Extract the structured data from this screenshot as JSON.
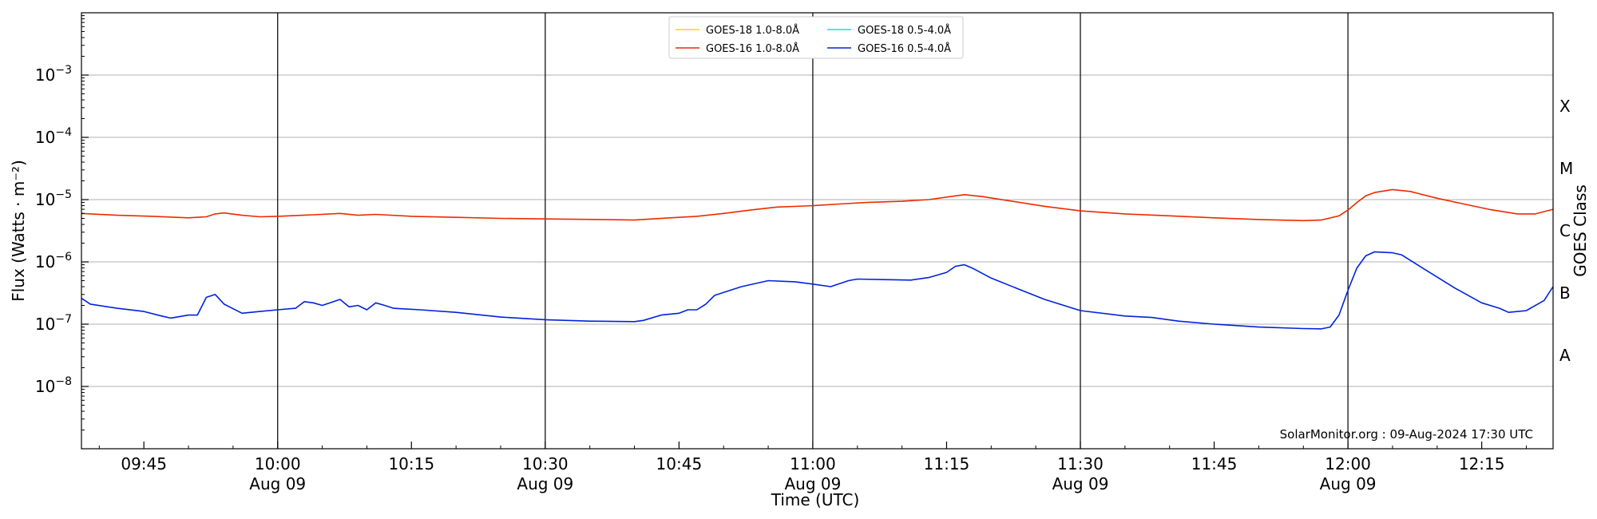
{
  "chart_data": {
    "type": "line",
    "xlabel": "Time (UTC)",
    "ylabel": "Flux (Watts · m⁻²)",
    "y2label": "GOES Class",
    "yscale": "log",
    "ylim": [
      1e-09,
      0.01
    ],
    "xlim": [
      "2024-08-09 09:38",
      "2024-08-09 12:23"
    ],
    "grid": "horizontal",
    "legend_position": "top-center",
    "y_ticks": [
      {
        "value": 1e-08,
        "base": "10",
        "exp": "−8"
      },
      {
        "value": 1e-07,
        "base": "10",
        "exp": "−7"
      },
      {
        "value": 1e-06,
        "base": "10",
        "exp": "−6"
      },
      {
        "value": 1e-05,
        "base": "10",
        "exp": "−5"
      },
      {
        "value": 0.0001,
        "base": "10",
        "exp": "−4"
      },
      {
        "value": 0.001,
        "base": "10",
        "exp": "−3"
      }
    ],
    "class_ticks": [
      {
        "label": "A",
        "at": 3.16e-08
      },
      {
        "label": "B",
        "at": 3.16e-07
      },
      {
        "label": "C",
        "at": 3.16e-06
      },
      {
        "label": "M",
        "at": 3.16e-05
      },
      {
        "label": "X",
        "at": 0.000316
      }
    ],
    "x_ticks": [
      {
        "time": "2024-08-09 09:45",
        "label": "09:45",
        "sublabel": ""
      },
      {
        "time": "2024-08-09 10:00",
        "label": "10:00",
        "sublabel": "Aug 09"
      },
      {
        "time": "2024-08-09 10:15",
        "label": "10:15",
        "sublabel": ""
      },
      {
        "time": "2024-08-09 10:30",
        "label": "10:30",
        "sublabel": "Aug 09"
      },
      {
        "time": "2024-08-09 10:45",
        "label": "10:45",
        "sublabel": ""
      },
      {
        "time": "2024-08-09 11:00",
        "label": "11:00",
        "sublabel": "Aug 09"
      },
      {
        "time": "2024-08-09 11:15",
        "label": "11:15",
        "sublabel": ""
      },
      {
        "time": "2024-08-09 11:30",
        "label": "11:30",
        "sublabel": "Aug 09"
      },
      {
        "time": "2024-08-09 11:45",
        "label": "11:45",
        "sublabel": ""
      },
      {
        "time": "2024-08-09 12:00",
        "label": "12:00",
        "sublabel": "Aug 09"
      },
      {
        "time": "2024-08-09 12:15",
        "label": "12:15",
        "sublabel": ""
      }
    ],
    "vlines": [
      "2024-08-09 10:00",
      "2024-08-09 10:30",
      "2024-08-09 11:00",
      "2024-08-09 11:30",
      "2024-08-09 12:00"
    ],
    "series": [
      {
        "name": "GOES-18 1.0-8.0Å",
        "color": "#ffd700",
        "points": []
      },
      {
        "name": "GOES-18 0.5-4.0Å",
        "color": "#00e5ee",
        "points": []
      },
      {
        "name": "GOES-16 1.0-8.0Å",
        "color": "#ee2a00",
        "points": [
          [
            "2024-08-09 09:38",
            6e-06
          ],
          [
            "2024-08-09 09:42",
            5.6e-06
          ],
          [
            "2024-08-09 09:46",
            5.4e-06
          ],
          [
            "2024-08-09 09:50",
            5.1e-06
          ],
          [
            "2024-08-09 09:52",
            5.3e-06
          ],
          [
            "2024-08-09 09:53",
            5.9e-06
          ],
          [
            "2024-08-09 09:54",
            6.1e-06
          ],
          [
            "2024-08-09 09:56",
            5.6e-06
          ],
          [
            "2024-08-09 09:58",
            5.3e-06
          ],
          [
            "2024-08-09 10:00",
            5.4e-06
          ],
          [
            "2024-08-09 10:04",
            5.7e-06
          ],
          [
            "2024-08-09 10:07",
            6e-06
          ],
          [
            "2024-08-09 10:09",
            5.6e-06
          ],
          [
            "2024-08-09 10:11",
            5.8e-06
          ],
          [
            "2024-08-09 10:15",
            5.4e-06
          ],
          [
            "2024-08-09 10:20",
            5.2e-06
          ],
          [
            "2024-08-09 10:25",
            5e-06
          ],
          [
            "2024-08-09 10:30",
            4.9e-06
          ],
          [
            "2024-08-09 10:36",
            4.8e-06
          ],
          [
            "2024-08-09 10:40",
            4.7e-06
          ],
          [
            "2024-08-09 10:44",
            5.1e-06
          ],
          [
            "2024-08-09 10:47",
            5.4e-06
          ],
          [
            "2024-08-09 10:50",
            6e-06
          ],
          [
            "2024-08-09 10:53",
            6.8e-06
          ],
          [
            "2024-08-09 10:56",
            7.6e-06
          ],
          [
            "2024-08-09 11:00",
            8e-06
          ],
          [
            "2024-08-09 11:03",
            8.5e-06
          ],
          [
            "2024-08-09 11:06",
            9e-06
          ],
          [
            "2024-08-09 11:10",
            9.4e-06
          ],
          [
            "2024-08-09 11:13",
            1e-05
          ],
          [
            "2024-08-09 11:16",
            1.15e-05
          ],
          [
            "2024-08-09 11:17",
            1.2e-05
          ],
          [
            "2024-08-09 11:19",
            1.12e-05
          ],
          [
            "2024-08-09 11:22",
            9.6e-06
          ],
          [
            "2024-08-09 11:26",
            7.8e-06
          ],
          [
            "2024-08-09 11:30",
            6.6e-06
          ],
          [
            "2024-08-09 11:35",
            5.9e-06
          ],
          [
            "2024-08-09 11:40",
            5.5e-06
          ],
          [
            "2024-08-09 11:45",
            5.1e-06
          ],
          [
            "2024-08-09 11:50",
            4.8e-06
          ],
          [
            "2024-08-09 11:55",
            4.6e-06
          ],
          [
            "2024-08-09 11:57",
            4.7e-06
          ],
          [
            "2024-08-09 11:59",
            5.5e-06
          ],
          [
            "2024-08-09 12:00",
            6.8e-06
          ],
          [
            "2024-08-09 12:01",
            9e-06
          ],
          [
            "2024-08-09 12:02",
            1.15e-05
          ],
          [
            "2024-08-09 12:03",
            1.3e-05
          ],
          [
            "2024-08-09 12:05",
            1.45e-05
          ],
          [
            "2024-08-09 12:07",
            1.35e-05
          ],
          [
            "2024-08-09 12:10",
            1.05e-05
          ],
          [
            "2024-08-09 12:13",
            8.5e-06
          ],
          [
            "2024-08-09 12:16",
            6.9e-06
          ],
          [
            "2024-08-09 12:19",
            5.9e-06
          ],
          [
            "2024-08-09 12:21",
            5.9e-06
          ],
          [
            "2024-08-09 12:23",
            7e-06
          ]
        ]
      },
      {
        "name": "GOES-16 0.5-4.0Å",
        "color": "#0022dd",
        "points": [
          [
            "2024-08-09 09:38",
            2.6e-07
          ],
          [
            "2024-08-09 09:39",
            2.1e-07
          ],
          [
            "2024-08-09 09:42",
            1.8e-07
          ],
          [
            "2024-08-09 09:45",
            1.6e-07
          ],
          [
            "2024-08-09 09:47",
            1.35e-07
          ],
          [
            "2024-08-09 09:48",
            1.25e-07
          ],
          [
            "2024-08-09 09:50",
            1.4e-07
          ],
          [
            "2024-08-09 09:51",
            1.4e-07
          ],
          [
            "2024-08-09 09:52",
            2.7e-07
          ],
          [
            "2024-08-09 09:53",
            3e-07
          ],
          [
            "2024-08-09 09:54",
            2.1e-07
          ],
          [
            "2024-08-09 09:56",
            1.5e-07
          ],
          [
            "2024-08-09 09:58",
            1.6e-07
          ],
          [
            "2024-08-09 10:00",
            1.7e-07
          ],
          [
            "2024-08-09 10:02",
            1.8e-07
          ],
          [
            "2024-08-09 10:03",
            2.3e-07
          ],
          [
            "2024-08-09 10:04",
            2.2e-07
          ],
          [
            "2024-08-09 10:05",
            2e-07
          ],
          [
            "2024-08-09 10:07",
            2.5e-07
          ],
          [
            "2024-08-09 10:08",
            1.9e-07
          ],
          [
            "2024-08-09 10:09",
            2e-07
          ],
          [
            "2024-08-09 10:10",
            1.7e-07
          ],
          [
            "2024-08-09 10:11",
            2.2e-07
          ],
          [
            "2024-08-09 10:12",
            2e-07
          ],
          [
            "2024-08-09 10:13",
            1.8e-07
          ],
          [
            "2024-08-09 10:16",
            1.7e-07
          ],
          [
            "2024-08-09 10:20",
            1.55e-07
          ],
          [
            "2024-08-09 10:25",
            1.3e-07
          ],
          [
            "2024-08-09 10:30",
            1.18e-07
          ],
          [
            "2024-08-09 10:35",
            1.12e-07
          ],
          [
            "2024-08-09 10:40",
            1.1e-07
          ],
          [
            "2024-08-09 10:41",
            1.15e-07
          ],
          [
            "2024-08-09 10:43",
            1.4e-07
          ],
          [
            "2024-08-09 10:45",
            1.5e-07
          ],
          [
            "2024-08-09 10:46",
            1.7e-07
          ],
          [
            "2024-08-09 10:47",
            1.7e-07
          ],
          [
            "2024-08-09 10:48",
            2.1e-07
          ],
          [
            "2024-08-09 10:49",
            2.9e-07
          ],
          [
            "2024-08-09 10:52",
            4e-07
          ],
          [
            "2024-08-09 10:55",
            5e-07
          ],
          [
            "2024-08-09 10:58",
            4.8e-07
          ],
          [
            "2024-08-09 11:00",
            4.4e-07
          ],
          [
            "2024-08-09 11:02",
            4e-07
          ],
          [
            "2024-08-09 11:04",
            5e-07
          ],
          [
            "2024-08-09 11:05",
            5.3e-07
          ],
          [
            "2024-08-09 11:08",
            5.2e-07
          ],
          [
            "2024-08-09 11:11",
            5.1e-07
          ],
          [
            "2024-08-09 11:13",
            5.6e-07
          ],
          [
            "2024-08-09 11:15",
            6.8e-07
          ],
          [
            "2024-08-09 11:16",
            8.5e-07
          ],
          [
            "2024-08-09 11:17",
            9e-07
          ],
          [
            "2024-08-09 11:18",
            7.8e-07
          ],
          [
            "2024-08-09 11:20",
            5.5e-07
          ],
          [
            "2024-08-09 11:23",
            3.7e-07
          ],
          [
            "2024-08-09 11:26",
            2.5e-07
          ],
          [
            "2024-08-09 11:30",
            1.65e-07
          ],
          [
            "2024-08-09 11:35",
            1.35e-07
          ],
          [
            "2024-08-09 11:38",
            1.28e-07
          ],
          [
            "2024-08-09 11:41",
            1.12e-07
          ],
          [
            "2024-08-09 11:45",
            1e-07
          ],
          [
            "2024-08-09 11:50",
            9e-08
          ],
          [
            "2024-08-09 11:55",
            8.5e-08
          ],
          [
            "2024-08-09 11:57",
            8.4e-08
          ],
          [
            "2024-08-09 11:58",
            9e-08
          ],
          [
            "2024-08-09 11:59",
            1.4e-07
          ],
          [
            "2024-08-09 12:00",
            3.5e-07
          ],
          [
            "2024-08-09 12:01",
            8e-07
          ],
          [
            "2024-08-09 12:02",
            1.25e-06
          ],
          [
            "2024-08-09 12:03",
            1.45e-06
          ],
          [
            "2024-08-09 12:05",
            1.4e-06
          ],
          [
            "2024-08-09 12:06",
            1.3e-06
          ],
          [
            "2024-08-09 12:09",
            7e-07
          ],
          [
            "2024-08-09 12:12",
            3.8e-07
          ],
          [
            "2024-08-09 12:15",
            2.2e-07
          ],
          [
            "2024-08-09 12:17",
            1.8e-07
          ],
          [
            "2024-08-09 12:18",
            1.55e-07
          ],
          [
            "2024-08-09 12:20",
            1.65e-07
          ],
          [
            "2024-08-09 12:22",
            2.4e-07
          ],
          [
            "2024-08-09 12:23",
            4e-07
          ]
        ]
      }
    ],
    "annotation": "SolarMonitor.org : 09-Aug-2024 17:30 UTC"
  }
}
